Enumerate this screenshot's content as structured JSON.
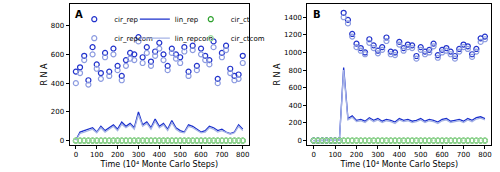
{
  "chart_data": [
    {
      "type": "scatter",
      "title": "A",
      "x_label": "Time (10⁴ Monte Carlo Steps)",
      "y_label": "R N A",
      "legend": "top",
      "xlim": [
        -30,
        830
      ],
      "xticks": [
        0,
        100,
        200,
        300,
        400,
        500,
        600,
        700,
        800
      ],
      "ylim": [
        -30,
        950
      ],
      "yticks": [
        0,
        200,
        400,
        600,
        800
      ],
      "x": [
        0,
        20,
        40,
        60,
        80,
        100,
        120,
        140,
        160,
        180,
        200,
        220,
        240,
        260,
        280,
        300,
        320,
        340,
        360,
        380,
        400,
        420,
        440,
        460,
        480,
        500,
        520,
        540,
        560,
        580,
        600,
        620,
        640,
        660,
        680,
        700,
        720,
        740,
        760,
        780,
        800
      ],
      "series": [
        {
          "name": "cir_rep",
          "type": "scatter",
          "marker": "circle-open",
          "color": "#2233cc",
          "values": [
            480,
            510,
            590,
            420,
            650,
            530,
            470,
            610,
            480,
            640,
            520,
            450,
            560,
            610,
            600,
            720,
            580,
            650,
            550,
            620,
            680,
            600,
            520,
            640,
            600,
            580,
            650,
            480,
            660,
            520,
            640,
            590,
            560,
            690,
            430,
            610,
            660,
            500,
            450,
            460,
            590
          ]
        },
        {
          "name": "cir_repcom",
          "type": "scatter",
          "marker": "circle-open",
          "color": "#8c9be0",
          "values": [
            400,
            470,
            560,
            390,
            600,
            500,
            430,
            580,
            450,
            600,
            490,
            420,
            520,
            570,
            560,
            690,
            540,
            610,
            520,
            590,
            640,
            560,
            490,
            610,
            570,
            540,
            620,
            450,
            630,
            490,
            600,
            560,
            530,
            650,
            400,
            580,
            630,
            470,
            420,
            430,
            540
          ]
        },
        {
          "name": "lin_rep",
          "type": "line",
          "line_style": "solid",
          "color": "#1a2fcc",
          "values": [
            5,
            60,
            70,
            80,
            90,
            60,
            100,
            70,
            90,
            110,
            80,
            130,
            100,
            120,
            90,
            200,
            110,
            130,
            90,
            150,
            100,
            120,
            80,
            140,
            90,
            70,
            60,
            110,
            100,
            80,
            60,
            70,
            100,
            90,
            70,
            80,
            60,
            50,
            60,
            110,
            80
          ]
        },
        {
          "name": "lin_repcom",
          "type": "line",
          "line_style": "solid",
          "color": "#a6b3e6",
          "values": [
            3,
            50,
            60,
            70,
            80,
            55,
            90,
            60,
            80,
            100,
            70,
            115,
            90,
            110,
            80,
            180,
            100,
            120,
            80,
            135,
            90,
            110,
            70,
            125,
            80,
            60,
            55,
            100,
            90,
            70,
            55,
            60,
            90,
            80,
            60,
            70,
            55,
            45,
            55,
            100,
            70
          ]
        },
        {
          "name": "cir_ct",
          "type": "scatter",
          "marker": "circle-open",
          "color": "#2ca02c",
          "values": [
            0,
            0,
            0,
            0,
            0,
            0,
            0,
            0,
            0,
            0,
            0,
            0,
            0,
            0,
            0,
            0,
            0,
            0,
            0,
            0,
            0,
            0,
            0,
            0,
            0,
            0,
            0,
            0,
            0,
            0,
            0,
            0,
            0,
            0,
            0,
            0,
            0,
            0,
            0,
            0,
            0
          ]
        },
        {
          "name": "cir_ctcom",
          "type": "scatter",
          "marker": "circle-open",
          "color": "#98d898",
          "values": [
            0,
            0,
            0,
            0,
            0,
            0,
            0,
            0,
            0,
            0,
            0,
            0,
            0,
            0,
            0,
            0,
            0,
            0,
            0,
            0,
            0,
            0,
            0,
            0,
            0,
            0,
            0,
            0,
            0,
            0,
            0,
            0,
            0,
            0,
            0,
            0,
            0,
            0,
            0,
            0,
            0
          ]
        }
      ]
    },
    {
      "type": "scatter",
      "title": "B",
      "x_label": "Time (10⁴ Monte Carlo Steps)",
      "y_label": "R N A",
      "xlim": [
        -30,
        830
      ],
      "xticks": [
        0,
        100,
        200,
        300,
        400,
        500,
        600,
        700,
        800
      ],
      "ylim": [
        -50,
        1550
      ],
      "yticks": [
        0,
        200,
        400,
        600,
        800,
        1000,
        1200,
        1400
      ],
      "x": [
        0,
        20,
        40,
        60,
        80,
        100,
        120,
        140,
        160,
        180,
        200,
        220,
        240,
        260,
        280,
        300,
        320,
        340,
        360,
        380,
        400,
        420,
        440,
        460,
        480,
        500,
        520,
        540,
        560,
        580,
        600,
        620,
        640,
        660,
        680,
        700,
        720,
        740,
        760,
        780,
        800
      ],
      "series": [
        {
          "name": "cir_rep",
          "type": "scatter",
          "marker": "circle-open",
          "color": "#2233cc",
          "values": [
            0,
            0,
            0,
            0,
            0,
            0,
            0,
            1450,
            1370,
            1210,
            1100,
            1050,
            1000,
            1150,
            1080,
            1020,
            1060,
            1170,
            1010,
            1000,
            1120,
            1050,
            1090,
            1080,
            960,
            1060,
            1010,
            1030,
            1100,
            970,
            1030,
            1050,
            1010,
            960,
            1040,
            1090,
            1070,
            980,
            1040,
            1160,
            1180
          ]
        },
        {
          "name": "cir_repcom",
          "type": "scatter",
          "marker": "circle-open",
          "color": "#8c9be0",
          "values": [
            0,
            0,
            0,
            0,
            0,
            0,
            0,
            1400,
            1330,
            1180,
            1060,
            1020,
            980,
            1110,
            1050,
            990,
            1030,
            1130,
            980,
            970,
            1090,
            1020,
            1060,
            1050,
            930,
            1030,
            980,
            1000,
            1070,
            940,
            1000,
            1020,
            980,
            930,
            1010,
            1060,
            1040,
            950,
            1010,
            1120,
            1150
          ]
        },
        {
          "name": "lin_rep",
          "type": "line",
          "line_style": "solid",
          "color": "#1a2fcc",
          "values": [
            0,
            0,
            0,
            0,
            0,
            0,
            5,
            830,
            250,
            280,
            230,
            240,
            220,
            260,
            230,
            250,
            220,
            240,
            230,
            210,
            250,
            230,
            240,
            220,
            230,
            250,
            220,
            240,
            230,
            210,
            240,
            250,
            220,
            230,
            240,
            220,
            250,
            230,
            260,
            270,
            250
          ]
        },
        {
          "name": "lin_repcom",
          "type": "line",
          "line_style": "solid",
          "color": "#a6b3e6",
          "values": [
            0,
            0,
            0,
            0,
            0,
            0,
            4,
            800,
            235,
            265,
            215,
            225,
            205,
            245,
            215,
            235,
            205,
            225,
            215,
            195,
            235,
            215,
            225,
            205,
            215,
            235,
            205,
            225,
            215,
            195,
            225,
            235,
            205,
            215,
            225,
            205,
            235,
            215,
            245,
            255,
            235
          ]
        },
        {
          "name": "cir_ct",
          "type": "scatter",
          "marker": "circle-open",
          "color": "#2ca02c",
          "values": [
            0,
            0,
            0,
            0,
            0,
            0,
            0,
            0,
            0,
            0,
            0,
            0,
            0,
            0,
            0,
            0,
            0,
            0,
            0,
            0,
            0,
            0,
            0,
            0,
            0,
            0,
            0,
            0,
            0,
            0,
            0,
            0,
            0,
            0,
            0,
            0,
            0,
            0,
            0,
            0,
            0
          ]
        },
        {
          "name": "cir_ctcom",
          "type": "scatter",
          "marker": "circle-open",
          "color": "#98d898",
          "values": [
            0,
            0,
            0,
            0,
            0,
            0,
            0,
            0,
            0,
            0,
            0,
            0,
            0,
            0,
            0,
            0,
            0,
            0,
            0,
            0,
            0,
            0,
            0,
            0,
            0,
            0,
            0,
            0,
            0,
            0,
            0,
            0,
            0,
            0,
            0,
            0,
            0,
            0,
            0,
            0,
            0
          ]
        }
      ]
    }
  ]
}
